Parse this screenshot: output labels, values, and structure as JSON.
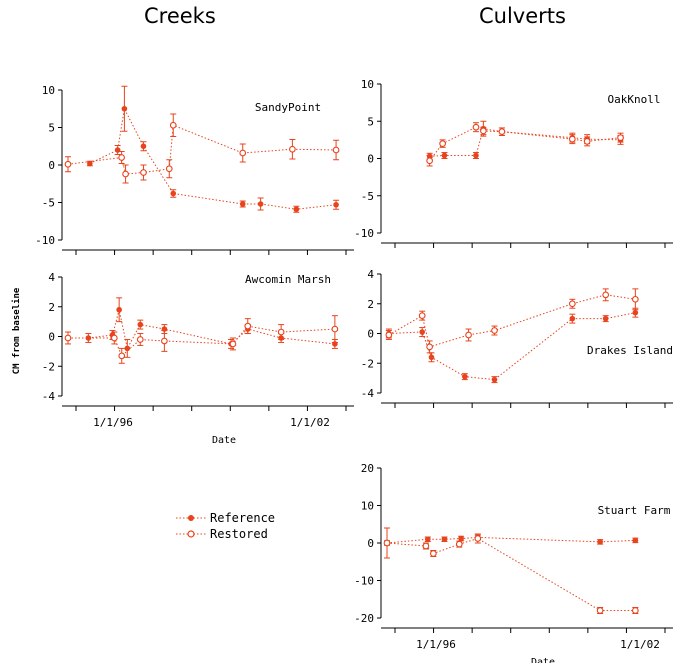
{
  "headings": {
    "left": "Creeks",
    "right": "Culverts"
  },
  "colors": {
    "series": "#e8431c",
    "axis": "#000000"
  },
  "legend": {
    "reference": "Reference",
    "restored": "Restored"
  },
  "y_axis_label": "CM from baseline",
  "chart_data": [
    {
      "id": "sandypoint",
      "title": "SandyPoint",
      "type": "line",
      "xlim": [
        1995.0,
        2002.0
      ],
      "ylim": [
        -10,
        10
      ],
      "yticks": [
        -10,
        -5,
        0,
        5,
        10
      ],
      "xticks": [],
      "xlabel": "",
      "series": [
        {
          "name": "Reference",
          "marker": "filled",
          "x": [
            1995.55,
            1996.25,
            1996.42,
            1996.9,
            1997.65,
            1999.4,
            1999.85,
            2000.75,
            2001.75
          ],
          "y": [
            0.2,
            2.0,
            7.5,
            2.5,
            -3.8,
            -5.2,
            -5.2,
            -5.9,
            -5.3
          ],
          "err": [
            0.3,
            0.6,
            3.0,
            0.6,
            0.5,
            0.4,
            0.8,
            0.4,
            0.6
          ]
        },
        {
          "name": "Restored",
          "marker": "open",
          "x": [
            1995.0,
            1996.35,
            1996.45,
            1996.9,
            1997.55,
            1997.65,
            1999.4,
            2000.65,
            2001.75
          ],
          "y": [
            0.1,
            1.0,
            -1.2,
            -1.0,
            -0.5,
            5.3,
            1.6,
            2.1,
            2.0
          ],
          "err": [
            1.0,
            0.8,
            1.2,
            1.0,
            1.2,
            1.5,
            1.2,
            1.3,
            1.3
          ]
        }
      ]
    },
    {
      "id": "awcomin",
      "title": "Awcomin Marsh",
      "type": "line",
      "xlim": [
        1995.0,
        2002.5
      ],
      "ylim": [
        -4,
        4
      ],
      "yticks": [
        -4,
        -2,
        0,
        2,
        4
      ],
      "xticks": [
        "1/1/96",
        "1/1/02"
      ],
      "xlabel": "Date",
      "series": [
        {
          "name": "Reference",
          "marker": "filled",
          "x": [
            1995.55,
            1996.2,
            1996.38,
            1996.6,
            1996.95,
            1997.6,
            1999.4,
            1999.85,
            2000.75,
            2002.2
          ],
          "y": [
            -0.1,
            0.1,
            1.8,
            -0.8,
            0.8,
            0.5,
            -0.5,
            0.5,
            -0.1,
            -0.5
          ],
          "err": [
            0.3,
            0.3,
            0.8,
            0.6,
            0.3,
            0.3,
            0.3,
            0.3,
            0.3,
            0.3
          ]
        },
        {
          "name": "Restored",
          "marker": "open",
          "x": [
            1995.0,
            1996.25,
            1996.45,
            1996.95,
            1997.6,
            1999.45,
            1999.85,
            2000.75,
            2002.2
          ],
          "y": [
            -0.1,
            -0.1,
            -1.3,
            -0.2,
            -0.3,
            -0.5,
            0.7,
            0.3,
            0.5
          ],
          "err": [
            0.4,
            0.4,
            0.5,
            0.4,
            0.7,
            0.4,
            0.5,
            0.5,
            0.9
          ]
        }
      ]
    },
    {
      "id": "oakknoll",
      "title": "OakKnoll",
      "type": "line",
      "xlim": [
        1995.0,
        2002.5
      ],
      "ylim": [
        -10,
        10
      ],
      "yticks": [
        -10,
        -5,
        0,
        5,
        10
      ],
      "xticks": [],
      "xlabel": "",
      "series": [
        {
          "name": "Reference",
          "marker": "filled",
          "x": [
            1996.15,
            1996.55,
            1997.4,
            1997.6,
            1998.1,
            2000.0,
            2000.4,
            2001.3
          ],
          "y": [
            0.3,
            0.4,
            0.4,
            4.0,
            3.6,
            2.8,
            2.6,
            2.5
          ],
          "err": [
            0.4,
            0.4,
            0.4,
            1.0,
            0.5,
            0.6,
            0.6,
            0.6
          ]
        },
        {
          "name": "Restored",
          "marker": "open",
          "x": [
            1996.15,
            1996.5,
            1997.4,
            1997.6,
            1998.1,
            2000.0,
            2000.4,
            2001.3
          ],
          "y": [
            -0.3,
            2.0,
            4.2,
            3.7,
            3.6,
            2.6,
            2.3,
            2.8
          ],
          "err": [
            0.7,
            0.5,
            0.6,
            0.5,
            0.5,
            0.6,
            0.6,
            0.6
          ]
        }
      ]
    },
    {
      "id": "drakes",
      "title": "Drakes Island",
      "type": "line",
      "xlim": [
        1995.0,
        2002.5
      ],
      "ylim": [
        -4,
        4
      ],
      "yticks": [
        -4,
        -2,
        0,
        2,
        4
      ],
      "xticks": [],
      "xlabel": "",
      "series": [
        {
          "name": "Reference",
          "marker": "filled",
          "x": [
            1995.05,
            1995.95,
            1996.2,
            1997.1,
            1997.9,
            2000.0,
            2000.9,
            2001.7
          ],
          "y": [
            0.0,
            0.1,
            -1.6,
            -2.9,
            -3.1,
            1.0,
            1.0,
            1.4
          ],
          "err": [
            0.3,
            0.3,
            0.3,
            0.2,
            0.2,
            0.3,
            0.2,
            0.3
          ]
        },
        {
          "name": "Restored",
          "marker": "open",
          "x": [
            1995.05,
            1995.95,
            1996.15,
            1997.2,
            1997.9,
            2000.0,
            2000.9,
            2001.7
          ],
          "y": [
            -0.1,
            1.2,
            -0.9,
            -0.1,
            0.2,
            2.0,
            2.6,
            2.3
          ],
          "err": [
            0.3,
            0.3,
            0.4,
            0.4,
            0.3,
            0.3,
            0.4,
            0.7
          ]
        }
      ]
    },
    {
      "id": "stuart",
      "title": "Stuart Farm",
      "type": "line",
      "xlim": [
        1995.0,
        2002.5
      ],
      "ylim": [
        -20,
        20
      ],
      "yticks": [
        -20,
        -10,
        0,
        10,
        20
      ],
      "xticks": [
        "1/1/96",
        "1/1/02"
      ],
      "xlabel": "Date",
      "series": [
        {
          "name": "Reference",
          "marker": "filled",
          "x": [
            1995.0,
            1996.1,
            1996.55,
            1997.0,
            1997.45,
            2000.75,
            2001.7
          ],
          "y": [
            0.0,
            1.0,
            1.0,
            1.2,
            1.5,
            0.3,
            0.7
          ],
          "err": [
            0.6,
            0.6,
            0.6,
            0.6,
            0.6,
            0.6,
            0.6
          ]
        },
        {
          "name": "Restored",
          "marker": "open",
          "x": [
            1995.0,
            1996.05,
            1996.25,
            1996.95,
            1997.45,
            2000.75,
            2001.7
          ],
          "y": [
            0.0,
            -0.8,
            -2.8,
            -0.3,
            1.2,
            -18.0,
            -18.0
          ],
          "err": [
            4.0,
            0.8,
            0.8,
            0.8,
            1.2,
            0.8,
            0.8
          ]
        }
      ]
    }
  ]
}
